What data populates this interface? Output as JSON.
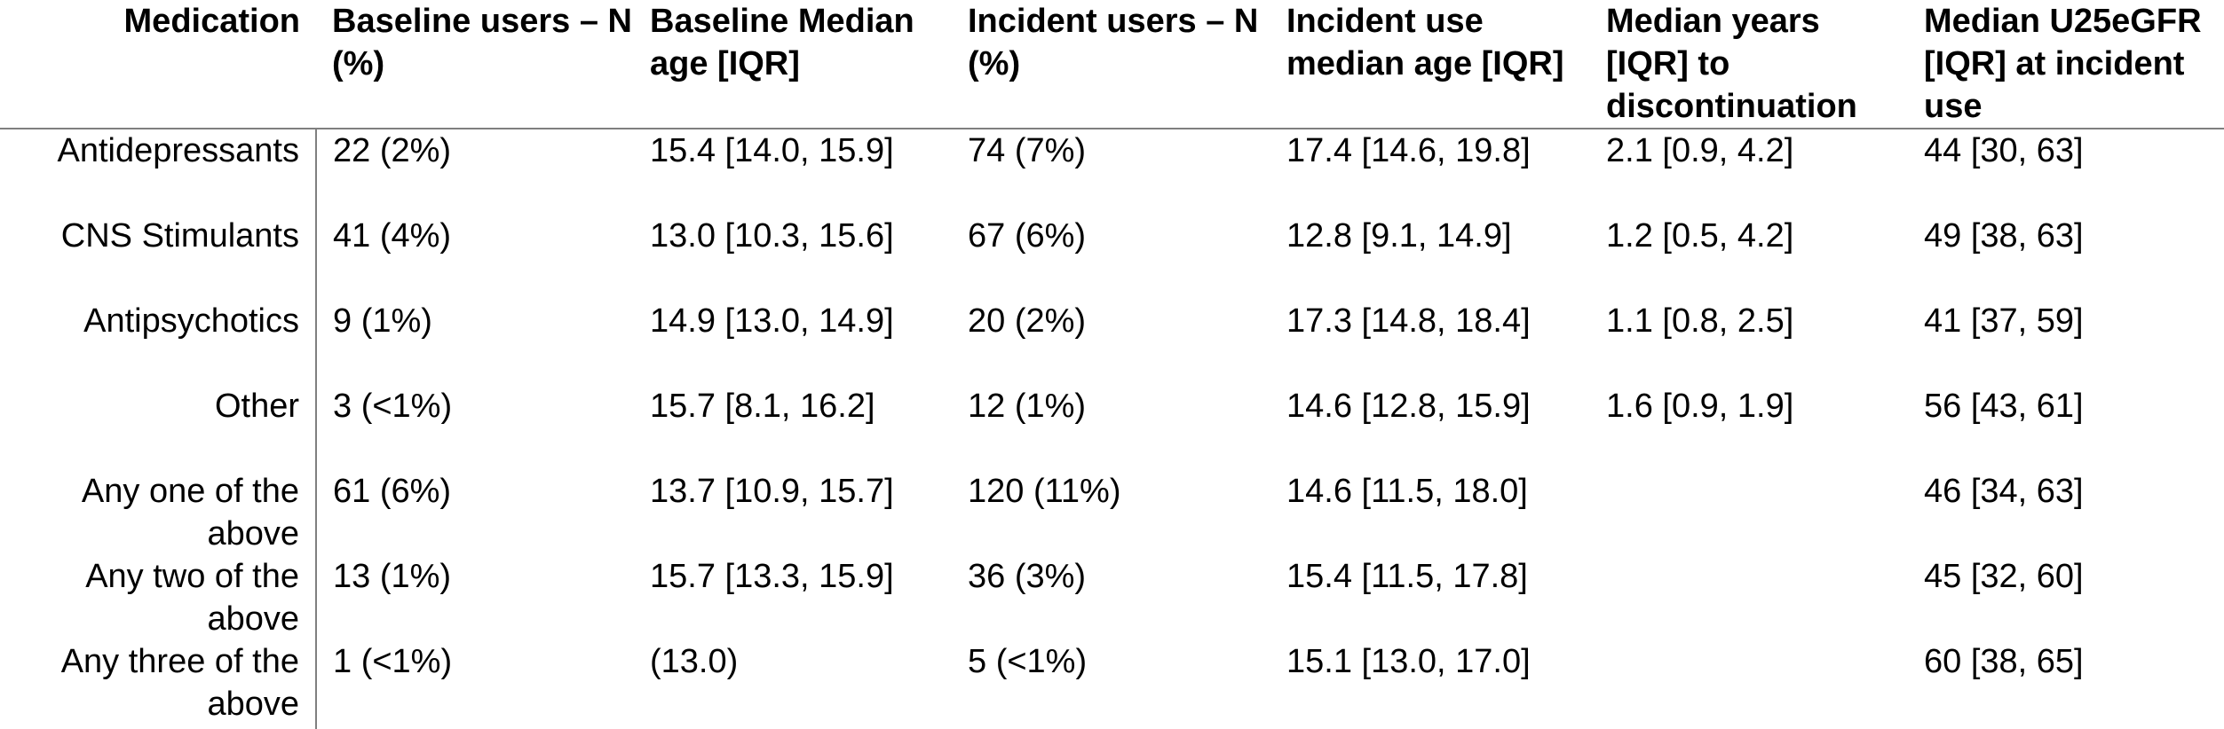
{
  "table": {
    "headers": [
      "Medication",
      "Baseline users – N (%)",
      "Baseline Median age [IQR]",
      "Incident users – N (%)",
      "Incident use median age [IQR]",
      "Median years [IQR] to discontinuation",
      "Median U25eGFR [IQR] at incident use"
    ],
    "rows": [
      [
        "Antidepressants",
        "22 (2%)",
        "15.4 [14.0, 15.9]",
        "74 (7%)",
        "17.4 [14.6, 19.8]",
        "2.1 [0.9, 4.2]",
        "44 [30, 63]"
      ],
      [
        "CNS Stimulants",
        "41 (4%)",
        "13.0 [10.3, 15.6]",
        "67 (6%)",
        "12.8 [9.1, 14.9]",
        "1.2 [0.5, 4.2]",
        "49 [38, 63]"
      ],
      [
        "Antipsychotics",
        "9 (1%)",
        "14.9 [13.0, 14.9]",
        "20 (2%)",
        "17.3 [14.8, 18.4]",
        "1.1 [0.8, 2.5]",
        "41 [37, 59]"
      ],
      [
        "Other",
        "3 (<1%)",
        "15.7 [8.1, 16.2]",
        "12 (1%)",
        "14.6 [12.8, 15.9]",
        "1.6 [0.9, 1.9]",
        "56 [43, 61]"
      ],
      [
        "Any one of the above",
        "61 (6%)",
        "13.7 [10.9, 15.7]",
        "120 (11%)",
        "14.6 [11.5, 18.0]",
        "",
        "46 [34, 63]"
      ],
      [
        "Any two of the above",
        "13 (1%)",
        "15.7 [13.3, 15.9]",
        "36 (3%)",
        "15.4 [11.5, 17.8]",
        "",
        "45 [32, 60]"
      ],
      [
        "Any three of the above",
        "1 (<1%)",
        "(13.0)",
        "5 (<1%)",
        "15.1 [13.0, 17.0]",
        "",
        "60 [38, 65]"
      ]
    ]
  }
}
